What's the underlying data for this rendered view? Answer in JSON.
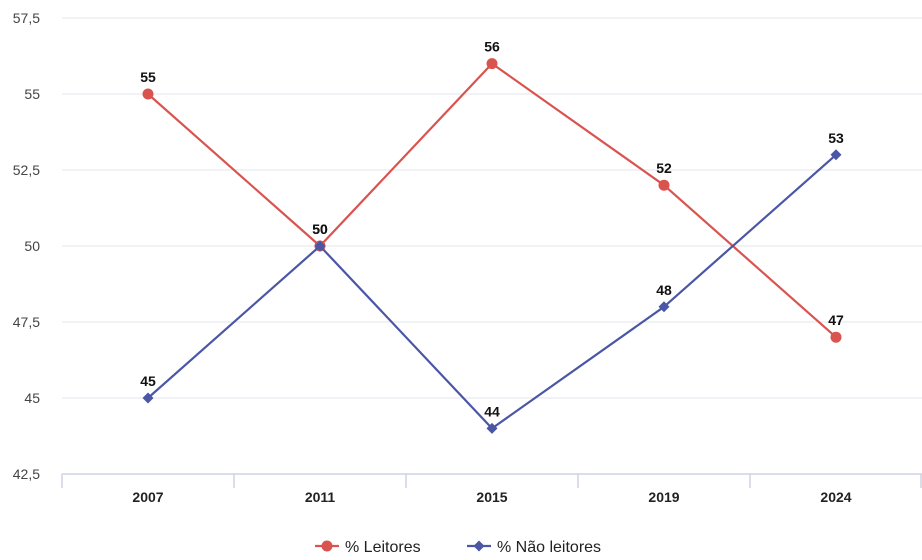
{
  "chart_data": {
    "type": "line",
    "categories": [
      "2007",
      "2011",
      "2015",
      "2019",
      "2024"
    ],
    "series": [
      {
        "name": "% Leitores",
        "values": [
          55,
          50,
          56,
          52,
          47
        ],
        "color": "#d9534f",
        "marker": "circle"
      },
      {
        "name": "% Não leitores",
        "values": [
          45,
          50,
          44,
          48,
          53
        ],
        "color": "#4a56a6",
        "marker": "diamond"
      }
    ],
    "data_labels": [
      [
        "55",
        "50",
        "56",
        "52",
        "47"
      ],
      [
        "45",
        "50",
        "44",
        "48",
        "53"
      ]
    ],
    "ylim": [
      42.5,
      57.5
    ],
    "yticks": [
      42.5,
      45,
      47.5,
      50,
      52.5,
      55,
      57.5
    ],
    "ytick_labels": [
      "42,5",
      "45",
      "47,5",
      "50",
      "52,5",
      "55",
      "57,5"
    ],
    "grid": true,
    "legend_position": "bottom-center",
    "title": "",
    "xlabel": "",
    "ylabel": ""
  }
}
